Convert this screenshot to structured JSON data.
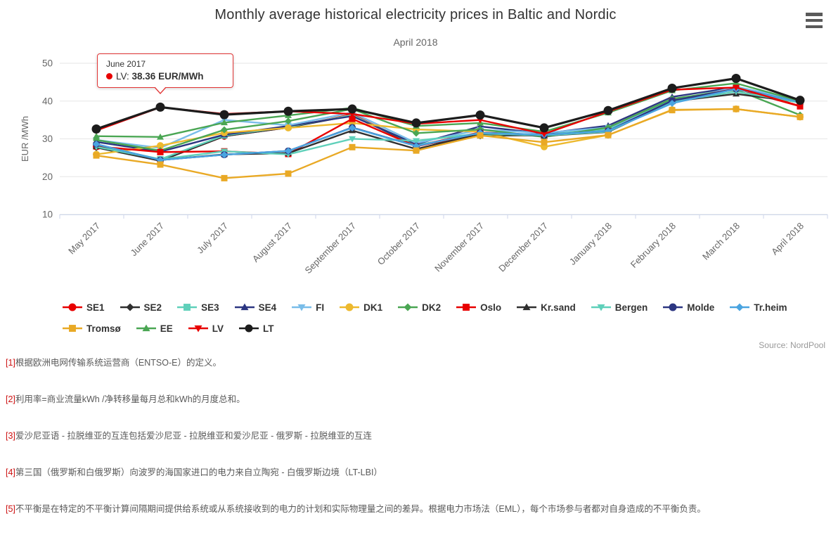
{
  "chart_data": {
    "type": "line",
    "title": "Monthly average historical electricity prices in Baltic and Nordic",
    "subtitle": "April 2018",
    "ylabel": "EUR /MWh",
    "ylim": [
      10,
      50
    ],
    "yticks": [
      10,
      20,
      30,
      40,
      50
    ],
    "grid": true,
    "legend_position": "bottom",
    "x_label_rotation": -45,
    "categories": [
      "May 2017",
      "June 2017",
      "July 2017",
      "August 2017",
      "September 2017",
      "October 2017",
      "November 2017",
      "December 2017",
      "January 2018",
      "February 2018",
      "March 2018",
      "April 2018"
    ],
    "series": [
      {
        "name": "SE1",
        "color": "#e80000",
        "marker": "circle",
        "values": [
          27.9,
          24.2,
          30.7,
          33.0,
          36.5,
          28.2,
          31.7,
          31.0,
          32.3,
          40.2,
          43.4,
          39.9
        ]
      },
      {
        "name": "SE2",
        "color": "#2f2f2f",
        "marker": "diamond",
        "values": [
          27.7,
          24.2,
          30.7,
          33.0,
          36.2,
          28.2,
          30.8,
          31.0,
          32.3,
          40.2,
          43.4,
          39.9
        ]
      },
      {
        "name": "SE3",
        "color": "#5fd0ba",
        "marker": "square",
        "values": [
          28.3,
          24.6,
          30.9,
          33.2,
          36.3,
          28.4,
          31.0,
          31.2,
          32.5,
          40.3,
          43.5,
          40.0
        ]
      },
      {
        "name": "SE4",
        "color": "#2c3681",
        "marker": "triangle",
        "values": [
          29.2,
          26.6,
          31.1,
          33.4,
          36.0,
          28.6,
          33.3,
          31.4,
          33.5,
          41.1,
          43.7,
          40.1
        ]
      },
      {
        "name": "FI",
        "color": "#79bde9",
        "marker": "triangle-down",
        "values": [
          29.7,
          27.6,
          35.0,
          33.6,
          37.0,
          28.9,
          32.4,
          31.6,
          33.0,
          39.6,
          43.8,
          40.2
        ]
      },
      {
        "name": "DK1",
        "color": "#edb92e",
        "marker": "circle",
        "values": [
          25.9,
          28.2,
          31.6,
          32.9,
          34.2,
          32.5,
          31.9,
          27.9,
          31.0,
          37.7,
          37.9,
          35.8
        ]
      },
      {
        "name": "DK2",
        "color": "#4aa653",
        "marker": "diamond",
        "values": [
          29.7,
          26.9,
          32.4,
          34.7,
          37.9,
          31.5,
          32.5,
          30.5,
          33.0,
          40.6,
          43.0,
          36.3
        ]
      },
      {
        "name": "Oslo",
        "color": "#e80000",
        "marker": "square",
        "values": [
          28.0,
          26.5,
          26.7,
          26.0,
          35.3,
          28.0,
          31.5,
          30.9,
          32.0,
          40.0,
          43.3,
          38.6
        ]
      },
      {
        "name": "Kr.sand",
        "color": "#2f2f2f",
        "marker": "triangle",
        "values": [
          28.0,
          24.4,
          25.9,
          26.2,
          32.2,
          27.3,
          31.3,
          30.8,
          31.8,
          39.9,
          41.9,
          39.7
        ]
      },
      {
        "name": "Bergen",
        "color": "#5fd0ba",
        "marker": "triangle-down",
        "values": [
          27.9,
          24.6,
          26.7,
          25.9,
          30.0,
          29.5,
          31.4,
          30.9,
          31.9,
          39.8,
          42.5,
          39.6
        ]
      },
      {
        "name": "Molde",
        "color": "#2c3681",
        "marker": "circle",
        "values": [
          28.6,
          24.4,
          25.8,
          26.8,
          33.0,
          28.1,
          31.6,
          31.1,
          32.1,
          40.1,
          43.2,
          39.8
        ]
      },
      {
        "name": "Tr.heim",
        "color": "#4aa4e0",
        "marker": "diamond",
        "values": [
          28.6,
          24.4,
          25.8,
          26.8,
          32.9,
          28.1,
          31.6,
          31.1,
          32.1,
          39.4,
          43.2,
          39.8
        ]
      },
      {
        "name": "Tromsø",
        "color": "#e9a925",
        "marker": "square",
        "values": [
          25.6,
          23.2,
          19.6,
          20.8,
          27.8,
          26.9,
          30.9,
          29.1,
          31.0,
          37.6,
          37.9,
          35.8
        ]
      },
      {
        "name": "EE",
        "color": "#4aa653",
        "marker": "triangle",
        "values": [
          30.7,
          30.5,
          34.3,
          36.2,
          38.2,
          33.4,
          34.2,
          31.9,
          36.9,
          42.8,
          44.7,
          40.0
        ]
      },
      {
        "name": "LV",
        "color": "#e80000",
        "marker": "triangle-down",
        "values": [
          32.2,
          38.36,
          36.6,
          37.3,
          36.6,
          34.0,
          35.0,
          31.3,
          37.2,
          43.0,
          43.6,
          38.7
        ]
      },
      {
        "name": "LT",
        "color": "#1c1c1c",
        "marker": "circle",
        "values": [
          32.6,
          38.4,
          36.4,
          37.3,
          37.9,
          34.2,
          36.3,
          32.9,
          37.5,
          43.4,
          46.0,
          40.2
        ]
      }
    ]
  },
  "tooltip": {
    "month": "June 2017",
    "series": "LV:",
    "value": "38.36 EUR/MWh",
    "dot_color": "#e80000"
  },
  "menu": {
    "icon": "hamburger-menu"
  },
  "source": "Source: NordPool",
  "footnotes": [
    {
      "ref": "[1]",
      "text": "根据欧洲电网传输系统运营商（ENTSO-E）的定义。"
    },
    {
      "ref": "[2]",
      "text": "利用率=商业流量kWh /净转移量每月总和kWh的月度总和。"
    },
    {
      "ref": "[3]",
      "text": "爱沙尼亚语 - 拉脱维亚的互连包括爱沙尼亚 - 拉脱维亚和爱沙尼亚 - 俄罗斯 - 拉脱维亚的互连"
    },
    {
      "ref": "[4]",
      "text": "第三国（俄罗斯和白俄罗斯）向波罗的海国家进口的电力来自立陶宛 - 白俄罗斯边境（LT-LBI）"
    },
    {
      "ref": "[5]",
      "text": "不平衡是在特定的不平衡计算间隔期间提供给系统或从系统接收到的电力的计划和实际物理量之间的差异。根据电力市场法（EML），每个市场参与者都对自身造成的不平衡负责。"
    }
  ]
}
